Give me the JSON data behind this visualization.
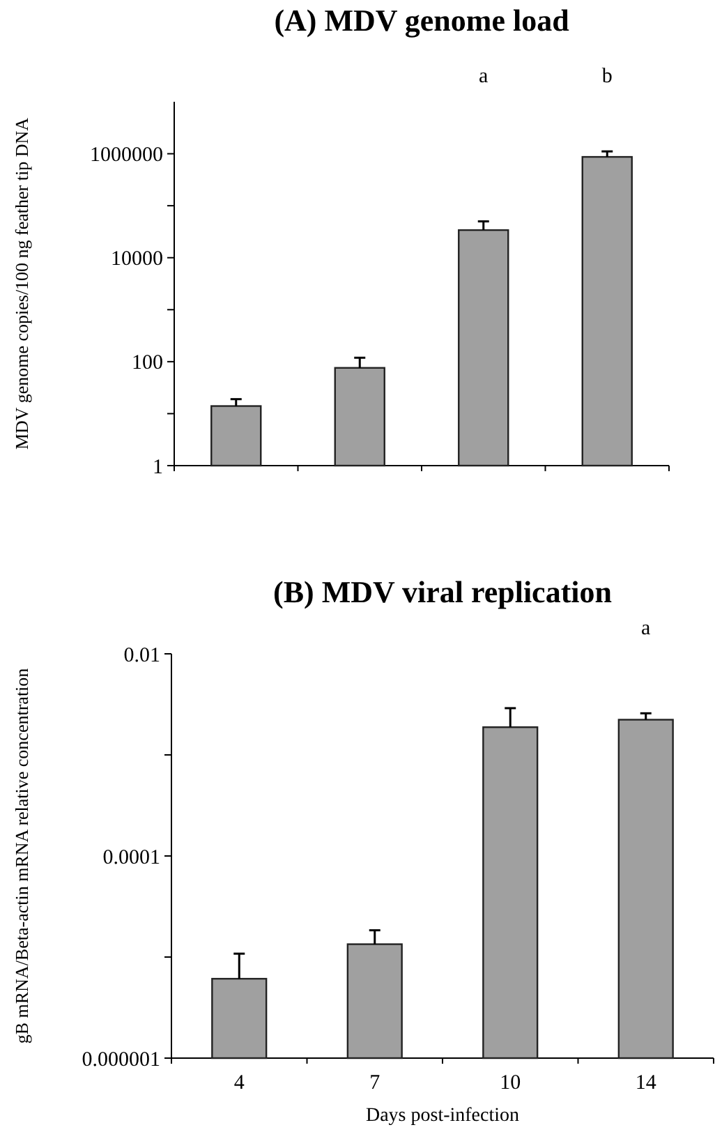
{
  "chart_data": [
    {
      "type": "bar",
      "title": "(A) MDV genome load",
      "ylabel": "MDV genome copies/100 ng feather tip DNA",
      "categories": [
        null,
        null,
        null,
        null
      ],
      "values": [
        14,
        76,
        34000,
        870000
      ],
      "errors": [
        [
          14,
          19
        ],
        [
          76,
          119
        ],
        [
          34000,
          50000
        ],
        [
          870000,
          1110000
        ]
      ],
      "color": "#a0a0a0",
      "log": true,
      "ylim": [
        1,
        10000000
      ],
      "yticks": [
        1,
        {
          "value": 10,
          "label": null
        },
        100,
        {
          "value": 1000,
          "label": null
        },
        10000,
        {
          "value": 100000,
          "label": null
        },
        1000000
      ],
      "tick_labels": "y",
      "annotations": [
        "a",
        "b"
      ]
    },
    {
      "type": "bar",
      "title": "(B) MDV viral replication",
      "ylabel": "gB mRNA/Beta-actin mRNA relative concentration",
      "xlabel": "Days post-infection",
      "categories": [
        "4",
        "7",
        "10",
        "14"
      ],
      "values": [
        6.1e-06,
        1.34e-05,
        0.00188,
        0.00223
      ],
      "errors": [
        [
          6.1e-06,
          1.08e-05
        ],
        [
          1.34e-05,
          1.84e-05
        ],
        [
          0.00188,
          0.0029
        ],
        [
          0.00223,
          0.00258
        ]
      ],
      "color": "#a0a0a0",
      "log": true,
      "ylim": [
        1e-06,
        0.01
      ],
      "yticks": [
        {
          "value": 1e-06,
          "label": "0.000001"
        },
        {
          "value": 1e-05,
          "label": null
        },
        0.0001,
        {
          "value": 0.001,
          "label": null
        },
        0.01
      ],
      "annotations": [
        "a"
      ]
    }
  ]
}
